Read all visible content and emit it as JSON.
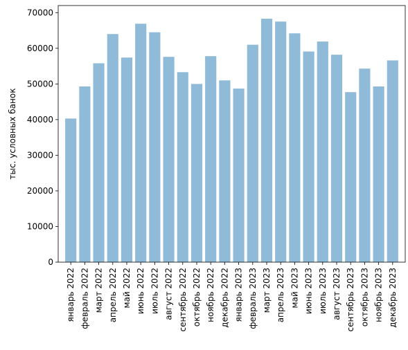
{
  "chart_data": {
    "type": "bar",
    "title": "",
    "xlabel": "",
    "ylabel": "тыс. условных банок",
    "ylim": [
      0,
      72000
    ],
    "yticks": [
      0,
      10000,
      20000,
      30000,
      40000,
      50000,
      60000,
      70000
    ],
    "grid": false,
    "bar_color": "#1f77b4",
    "bar_opacity": 0.5,
    "categories": [
      "январь 2022",
      "февраль 2022",
      "март 2022",
      "апрель 2022",
      "май 2022",
      "июнь 2022",
      "июль 2022",
      "август 2022",
      "сентябрь 2022",
      "октябрь 2022",
      "ноябрь 2022",
      "декабрь 2022",
      "январь 2023",
      "февраль 2023",
      "март 2023",
      "апрель 2023",
      "май 2023",
      "июнь 2023",
      "июль 2023",
      "август 2023",
      "сентябрь 2023",
      "октябрь 2023",
      "ноябрь 2023",
      "декабрь 2023"
    ],
    "values": [
      40300,
      49300,
      55800,
      64000,
      57400,
      66900,
      64500,
      57600,
      53300,
      50000,
      57800,
      51000,
      48700,
      61000,
      68300,
      67500,
      64200,
      59100,
      61900,
      58200,
      47700,
      54300,
      49300,
      56600
    ]
  }
}
